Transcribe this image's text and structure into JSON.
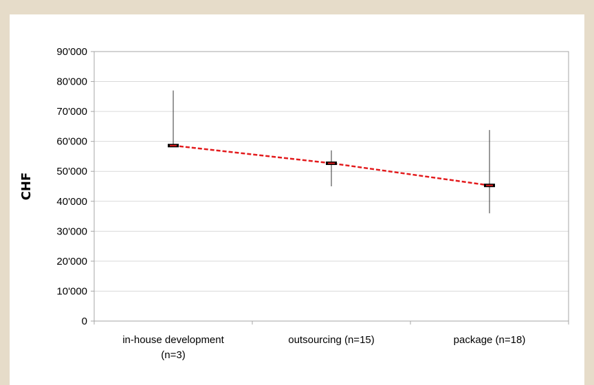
{
  "chart_data": {
    "type": "line",
    "title": "",
    "xlabel": "",
    "ylabel": "CHF",
    "ylim": [
      0,
      90000
    ],
    "yticks": [
      0,
      10000,
      20000,
      30000,
      40000,
      50000,
      60000,
      70000,
      80000,
      90000
    ],
    "ytick_labels": [
      "0",
      "10'000",
      "20'000",
      "30'000",
      "40'000",
      "50'000",
      "60'000",
      "70'000",
      "80'000",
      "90'000"
    ],
    "grid": true,
    "legend": "none",
    "categories": [
      [
        "in-house development",
        "(n=3)"
      ],
      [
        "outsourcing (n=15)"
      ],
      [
        "package (n=18)"
      ]
    ],
    "series": [
      {
        "values": [
          58600,
          52700,
          45300
        ],
        "low": [
          null,
          45000,
          36000
        ],
        "high": [
          77000,
          57000,
          63800
        ],
        "line_color": "#e31a1c",
        "line_style": "dashed",
        "marker_color": "#000000",
        "errorbar_color": "#333333"
      }
    ]
  }
}
